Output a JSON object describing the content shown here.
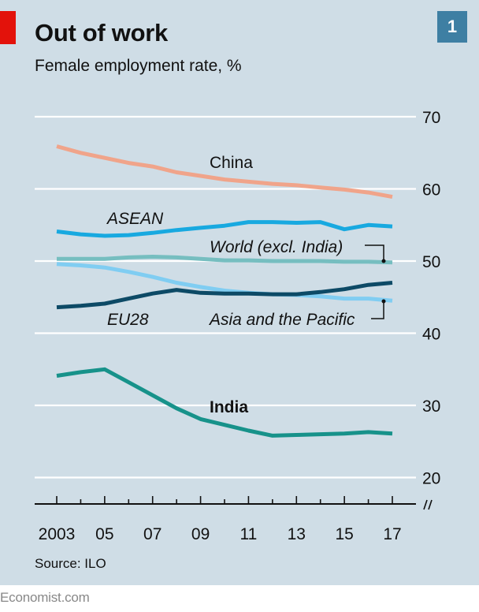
{
  "header": {
    "title": "Out of work",
    "subtitle": "Female employment rate, %",
    "chart_number": "1"
  },
  "source": "Source: ILO",
  "footer": "Economist.com",
  "colors": {
    "background": "#cfdde6",
    "China": "#f0a48a",
    "ASEAN": "#18a9e0",
    "World (excl. India)": "#76bec0",
    "Asia and the Pacific": "#80cdf2",
    "EU28": "#0d4a66",
    "India": "#17928a"
  },
  "chart_data": {
    "type": "line",
    "title": "Out of work",
    "subtitle": "Female employment rate, %",
    "x": [
      2003,
      2004,
      2005,
      2006,
      2007,
      2008,
      2009,
      2010,
      2011,
      2012,
      2013,
      2014,
      2015,
      2016,
      2017
    ],
    "x_tick_labels": [
      "2003",
      "05",
      "07",
      "09",
      "11",
      "13",
      "15",
      "17"
    ],
    "x_tick_values": [
      2003,
      2005,
      2007,
      2009,
      2011,
      2013,
      2015,
      2017
    ],
    "y_ticks": [
      20,
      30,
      40,
      50,
      60,
      70
    ],
    "y_tick_labels": [
      "20",
      "30",
      "40",
      "50",
      "60",
      "70"
    ],
    "ylim": [
      17,
      71
    ],
    "xlim": [
      2003,
      2017
    ],
    "grid": true,
    "y_axis_side": "right",
    "axis_break": true,
    "series": [
      {
        "name": "China",
        "values": [
          65.9,
          65.0,
          64.3,
          63.6,
          63.1,
          62.3,
          61.8,
          61.3,
          61.0,
          60.7,
          60.5,
          60.2,
          59.9,
          59.5,
          58.9
        ]
      },
      {
        "name": "ASEAN",
        "values": [
          54.1,
          53.7,
          53.5,
          53.6,
          53.9,
          54.3,
          54.6,
          54.9,
          55.4,
          55.4,
          55.3,
          55.4,
          54.4,
          55.0,
          54.8
        ]
      },
      {
        "name": "World (excl. India)",
        "values": [
          50.3,
          50.3,
          50.3,
          50.5,
          50.6,
          50.5,
          50.3,
          50.1,
          50.1,
          50.0,
          50.0,
          50.0,
          49.9,
          49.9,
          49.8
        ]
      },
      {
        "name": "Asia and the Pacific",
        "values": [
          49.6,
          49.4,
          49.1,
          48.5,
          47.8,
          47.0,
          46.4,
          45.9,
          45.6,
          45.4,
          45.3,
          45.1,
          44.8,
          44.8,
          44.5
        ]
      },
      {
        "name": "EU28",
        "values": [
          43.6,
          43.8,
          44.1,
          44.8,
          45.5,
          46.0,
          45.6,
          45.5,
          45.5,
          45.4,
          45.4,
          45.7,
          46.1,
          46.7,
          47.0
        ]
      },
      {
        "name": "India",
        "values": [
          34.1,
          34.6,
          35.0,
          33.2,
          31.4,
          29.6,
          28.1,
          27.3,
          26.5,
          25.8,
          25.9,
          26.0,
          26.1,
          26.3,
          26.1
        ]
      }
    ],
    "labels": {
      "China": "China",
      "ASEAN": "ASEAN",
      "World (excl. India)": "World (excl. India)",
      "Asia and the Pacific": "Asia and the Pacific",
      "EU28": "EU28",
      "India": "India"
    }
  }
}
